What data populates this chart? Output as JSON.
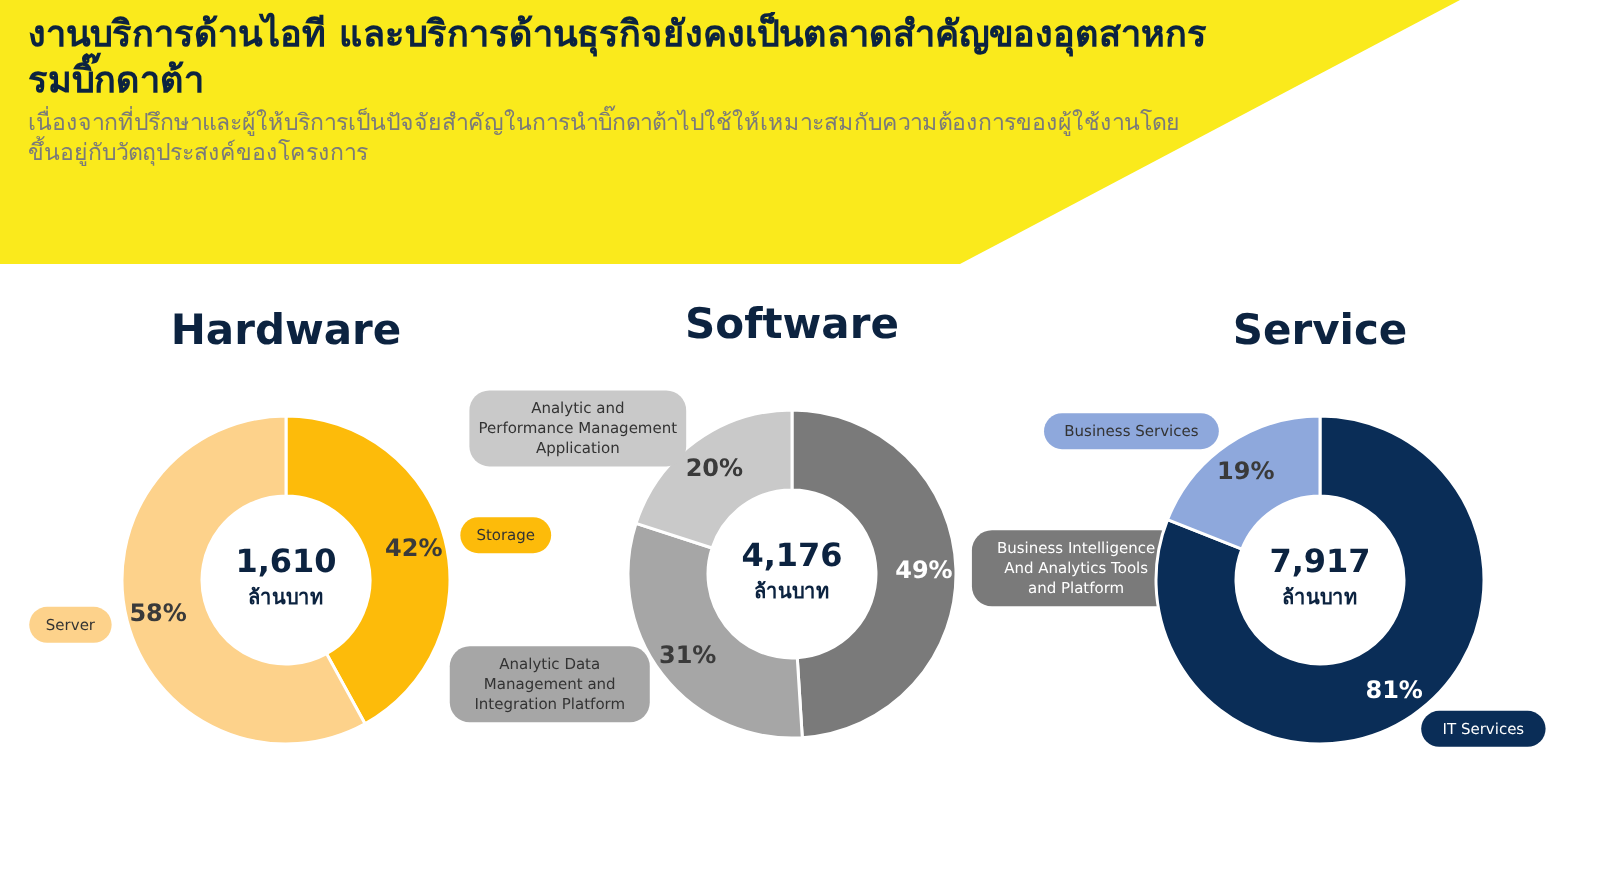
{
  "chart_data": [
    {
      "type": "other",
      "title": "งานบริการด้านไอที และบริการด้านธุรกิจยังคงเป็นตลาดสำคัญของอุตสาหกรรมบิ๊กดาต้า",
      "subtitle": "เนื่องจากที่ปรึกษาและผู้ให้บริการเป็นปัจจัยสำคัญในการนำบิ๊กดาต้าไปใช้ให้เหมาะสมกับความต้องการของผู้ใช้งานโดยขึ้นอยู่กับวัตถุประสงค์ของโครงการ"
    },
    {
      "type": "donut",
      "title": "Hardware",
      "categories": [
        "Storage",
        "Server"
      ],
      "values": [
        42,
        58
      ],
      "value_labels": [
        "42%",
        "58%"
      ],
      "colors": [
        "#fdbb0a",
        "#fdd28b"
      ],
      "annotations": [
        "1,610",
        "ล้านบาท"
      ]
    },
    {
      "type": "donut",
      "title": "Software",
      "categories": [
        "Business Intelligence And Analytics Tools and Platform",
        "Analytic Data Management and Integration Platform",
        "Analytic and Performance Management Application"
      ],
      "values": [
        49,
        31,
        20
      ],
      "value_labels": [
        "49%",
        "31%",
        "20%"
      ],
      "colors": [
        "#7a7a7a",
        "#a6a6a6",
        "#c9c9c9"
      ],
      "annotations": [
        "4,176",
        "ล้านบาท"
      ]
    },
    {
      "type": "donut",
      "title": "Service",
      "categories": [
        "IT Services",
        "Business Services"
      ],
      "values": [
        81,
        19
      ],
      "value_labels": [
        "81%",
        "19%"
      ],
      "colors": [
        "#0a2d57",
        "#8ea8dc"
      ],
      "annotations": [
        "7,917",
        "ล้านบาท"
      ]
    }
  ]
}
